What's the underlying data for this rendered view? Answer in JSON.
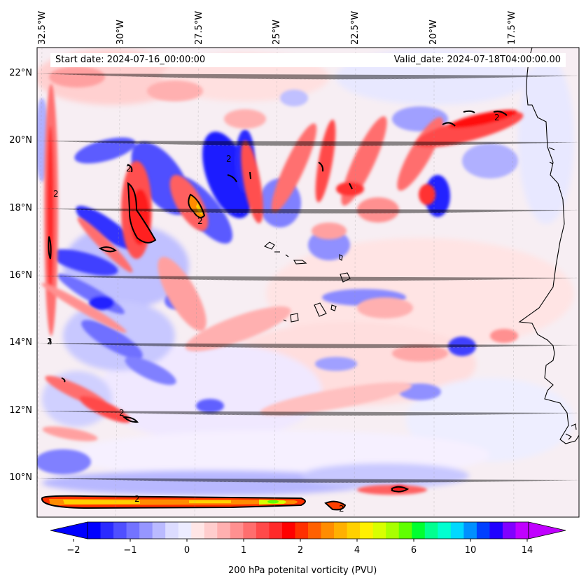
{
  "map": {
    "start_date": "Start date: 2024-07-16_00:00:00",
    "valid_date": "Valid_date: 2024-07-18T04:00:00.00",
    "lon_labels": [
      "32.5°W",
      "30°W",
      "27.5°W",
      "25°W",
      "22.5°W",
      "20°W",
      "17.5°W"
    ],
    "lat_labels": [
      "22°N",
      "20°N",
      "18°N",
      "16°N",
      "14°N",
      "12°N",
      "10°N"
    ],
    "contour_labels": [
      "2",
      "2",
      "2",
      "2",
      "2",
      "2",
      "2",
      "2",
      "2"
    ]
  },
  "colorbar": {
    "title": "200 hPa potenital vorticity (PVU)",
    "tick_labels": [
      "−2",
      "−1",
      "0",
      "1",
      "2",
      "4",
      "6",
      "10",
      "14"
    ],
    "colors": [
      "#0000ff",
      "#2a2aff",
      "#4f4fff",
      "#7373ff",
      "#9696ff",
      "#babaff",
      "#dcdcff",
      "#ececff",
      "#ffe6e6",
      "#ffcdcd",
      "#ffb0b0",
      "#ff9090",
      "#ff6e6e",
      "#ff4a4a",
      "#ff2a2a",
      "#ff0000",
      "#ff3000",
      "#ff6000",
      "#ff8c00",
      "#ffb000",
      "#ffd000",
      "#fff000",
      "#d8ff00",
      "#a8ff00",
      "#60ff00",
      "#00ff30",
      "#00ff90",
      "#00ffd0",
      "#00d8ff",
      "#0090ff",
      "#0040ff",
      "#2000ff",
      "#8000ff",
      "#c000ff"
    ],
    "under_color": "#0000ff",
    "over_color": "#c000ff"
  }
}
